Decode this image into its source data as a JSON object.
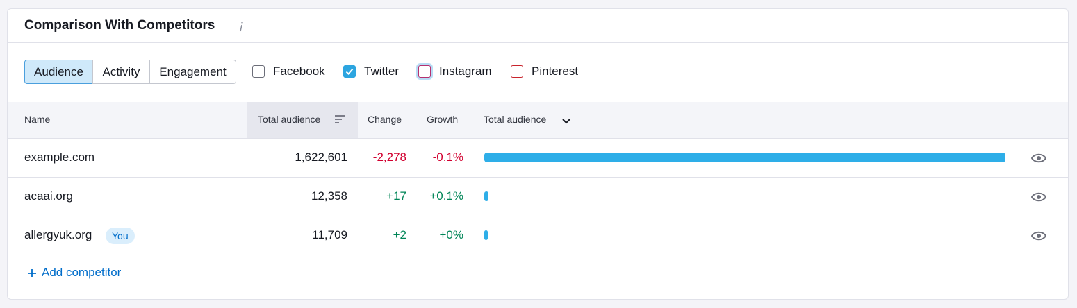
{
  "header": {
    "title": "Comparison With Competitors"
  },
  "tabs": [
    {
      "label": "Audience",
      "selected": true
    },
    {
      "label": "Activity",
      "selected": false
    },
    {
      "label": "Engagement",
      "selected": false
    }
  ],
  "networks": [
    {
      "label": "Facebook",
      "checked": false,
      "color": "#6c6e79"
    },
    {
      "label": "Twitter",
      "checked": true,
      "color": "#2ca5e0"
    },
    {
      "label": "Instagram",
      "checked": false,
      "color": "#b5316f"
    },
    {
      "label": "Pinterest",
      "checked": false,
      "color": "#c8232c"
    }
  ],
  "table": {
    "columns": [
      "Name",
      "Total audience",
      "Change",
      "Growth",
      "Total audience"
    ],
    "rows": [
      {
        "name": "example.com",
        "total": {
          "value": 1622601,
          "label": "1,622,601"
        },
        "change": "-2,278",
        "growth": "-0.1%"
      },
      {
        "name": "acaai.org",
        "total": {
          "value": 12358,
          "label": "12,358"
        },
        "change": "+17",
        "growth": "+0.1%"
      },
      {
        "name": "allergyuk.org",
        "badge": "You",
        "total": {
          "value": 11709,
          "label": "11,709"
        },
        "change": "+2",
        "growth": "+0%"
      }
    ]
  },
  "bar_color": "#2eaee8",
  "add_button": "Add competitor"
}
